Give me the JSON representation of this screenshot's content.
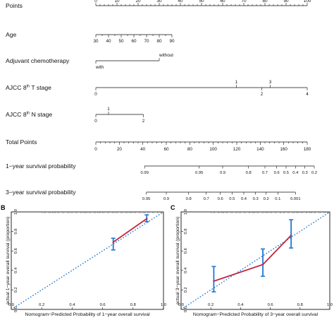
{
  "chart_data": [
    {
      "type": "nomogram",
      "rows": [
        {
          "label": "Points",
          "kind": "scale",
          "min": 0,
          "max": 100,
          "labels": [
            "0",
            "10",
            "20",
            "30",
            "40",
            "50",
            "60",
            "70",
            "80",
            "90",
            "100"
          ],
          "values": [
            0,
            10,
            20,
            30,
            40,
            50,
            60,
            70,
            80,
            90,
            100
          ]
        },
        {
          "label": "Age",
          "kind": "scale",
          "labels": [
            "30",
            "40",
            "50",
            "60",
            "70",
            "80",
            "90"
          ],
          "values": [
            30,
            40,
            50,
            60,
            70,
            80,
            90
          ],
          "points_at": [
            0,
            30
          ]
        },
        {
          "label": "Adjuvant chemotherapy",
          "kind": "category",
          "categories": [
            {
              "name": "with",
              "points": 0
            },
            {
              "name": "without",
              "points": 30
            }
          ]
        },
        {
          "label": "AJCC 8th T stage",
          "label_main": "AJCC 8",
          "label_sup": "th",
          "label_rest": " T stage",
          "kind": "category",
          "categories": [
            {
              "name": "0",
              "points": 0
            },
            {
              "name": "1",
              "points": 66.5
            },
            {
              "name": "2",
              "points": 78.5
            },
            {
              "name": "3",
              "points": 82.5
            },
            {
              "name": "4",
              "points": 100
            }
          ]
        },
        {
          "label": "AJCC 8th N stage",
          "label_main": "AJCC 8",
          "label_sup": "th",
          "label_rest": " N stage",
          "kind": "category",
          "categories": [
            {
              "name": "0",
              "points": 0
            },
            {
              "name": "1",
              "points": 6
            },
            {
              "name": "2",
              "points": 22.5
            }
          ]
        },
        {
          "label": "Total Points",
          "kind": "scale",
          "min": 0,
          "max": 180,
          "labels": [
            "0",
            "20",
            "40",
            "60",
            "80",
            "100",
            "120",
            "140",
            "160",
            "180"
          ],
          "values": [
            0,
            20,
            40,
            60,
            80,
            100,
            120,
            140,
            160,
            180
          ]
        },
        {
          "label": "1−year survival probability",
          "kind": "prob",
          "labels": [
            "0.99",
            "0.95",
            "0.9",
            "0.8",
            "0.7",
            "0.6",
            "0.5",
            "0.4",
            "0.3",
            "0.2"
          ],
          "total_points": [
            41.5,
            88,
            108,
            130,
            144,
            154,
            162,
            170,
            178,
            186
          ]
        },
        {
          "label": "3−year survival probability",
          "kind": "prob",
          "labels": [
            "0.95",
            "0.9",
            "0.8",
            "0.7",
            "0.6",
            "0.5",
            "0.4",
            "0.3",
            "0.2",
            "0.1",
            "0.001"
          ],
          "total_points": [
            43,
            60,
            79,
            94,
            106,
            116,
            126,
            136,
            145,
            155,
            170
          ]
        }
      ]
    },
    {
      "type": "line",
      "panel": "B",
      "xlabel": "Nomogram−Predicted Probability of 1−year overall survival",
      "ylabel": "actual 1−year overall survival (proportion)",
      "xlim": [
        0,
        1
      ],
      "ylim": [
        0,
        1
      ],
      "ticks": [
        "0.0",
        "0.2",
        "0.4",
        "0.6",
        "0.8",
        "1.0"
      ],
      "tick_values": [
        0,
        0.2,
        0.4,
        0.6,
        0.8,
        1.0
      ],
      "reference_line": true,
      "points": [
        {
          "x": 0.67,
          "y": 0.69,
          "lower": 0.61,
          "upper": 0.73
        },
        {
          "x": 0.89,
          "y": 0.93,
          "lower": 0.9,
          "upper": 0.97
        }
      ]
    },
    {
      "type": "line",
      "panel": "C",
      "xlabel": "Nomogram−Predicted Probability of 3−year overall survival",
      "ylabel": "actual 3−year overall survival (proportion)",
      "xlim": [
        0,
        1
      ],
      "ylim": [
        0,
        1
      ],
      "ticks": [
        "0.0",
        "0.2",
        "0.4",
        "0.6",
        "0.8",
        "1.0"
      ],
      "tick_values": [
        0,
        0.2,
        0.4,
        0.6,
        0.8,
        1.0
      ],
      "reference_line": true,
      "points": [
        {
          "x": 0.22,
          "y": 0.29,
          "lower": 0.18,
          "upper": 0.44
        },
        {
          "x": 0.55,
          "y": 0.46,
          "lower": 0.34,
          "upper": 0.62
        },
        {
          "x": 0.74,
          "y": 0.76,
          "lower": 0.63,
          "upper": 0.92
        }
      ]
    }
  ],
  "panels": {
    "b_letter": "B",
    "c_letter": "C"
  },
  "colors": {
    "reference": "#1f78d1",
    "calibration": "#c0283c",
    "errorbar": "#1f78d1",
    "axis": "#111111"
  }
}
